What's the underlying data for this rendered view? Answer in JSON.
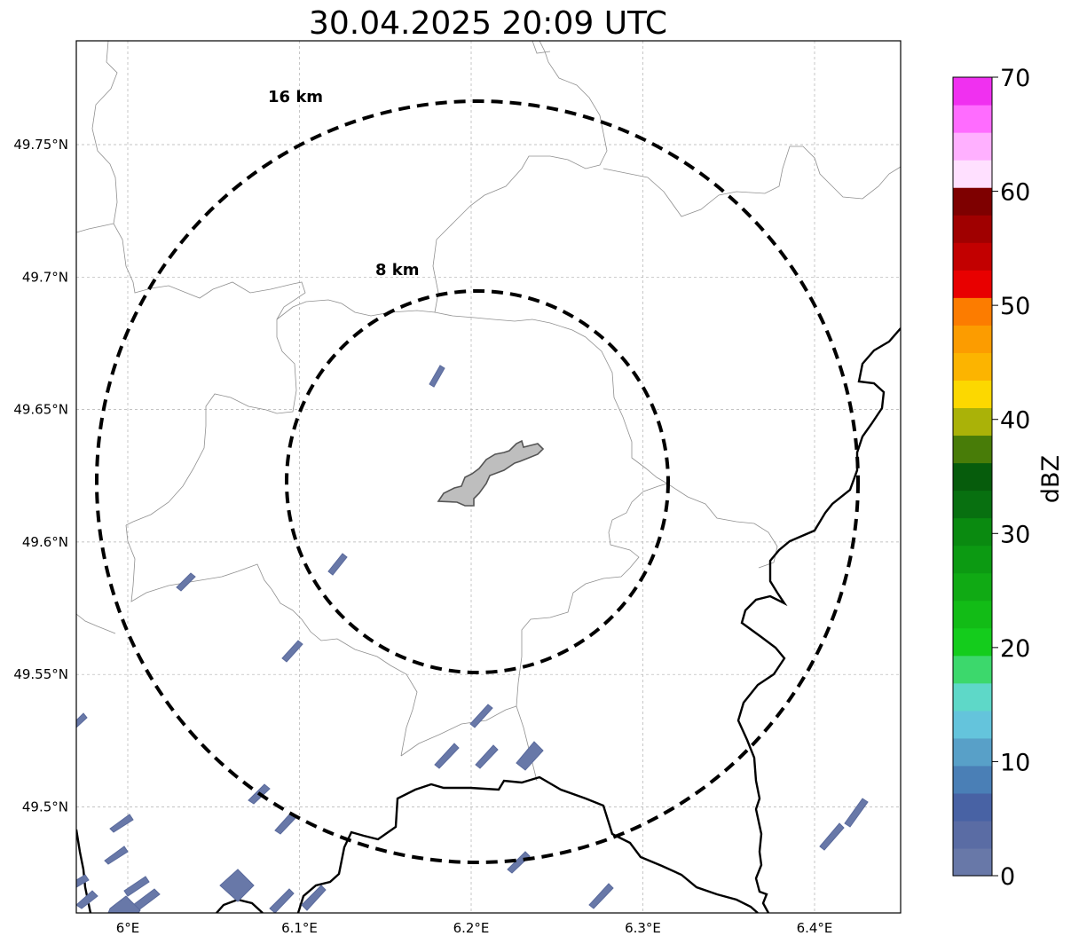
{
  "title": "30.04.2025 20:09 UTC",
  "map": {
    "lon_ticks": [
      {
        "value": 6.0,
        "label": "6°E"
      },
      {
        "value": 6.1,
        "label": "6.1°E"
      },
      {
        "value": 6.2,
        "label": "6.2°E"
      },
      {
        "value": 6.3,
        "label": "6.3°E"
      },
      {
        "value": 6.4,
        "label": "6.4°E"
      }
    ],
    "lat_ticks": [
      {
        "value": 49.75,
        "label": "49.75°N"
      },
      {
        "value": 49.7,
        "label": "49.7°N"
      },
      {
        "value": 49.65,
        "label": "49.65°N"
      },
      {
        "value": 49.6,
        "label": "49.6°N"
      },
      {
        "value": 49.55,
        "label": "49.55°N"
      },
      {
        "value": 49.5,
        "label": "49.5°N"
      }
    ],
    "range_rings": [
      {
        "label": "16 km",
        "radius_km": 16
      },
      {
        "label": "8 km",
        "radius_km": 8
      }
    ],
    "gridlines": true
  },
  "colorbar": {
    "label": "dBZ",
    "min": 0,
    "max": 70,
    "tick_labels": [
      "0",
      "10",
      "20",
      "30",
      "40",
      "50",
      "60",
      "70"
    ],
    "colors": [
      "#6878a8",
      "#5a6ca4",
      "#4862a4",
      "#4a7fb6",
      "#58a0c8",
      "#64c4dc",
      "#5ed8c8",
      "#3cd86c",
      "#14cc1c",
      "#12bc16",
      "#10aa14",
      "#0c9a12",
      "#0a8a10",
      "#087010",
      "#065c0c",
      "#487c08",
      "#aab208",
      "#fcd800",
      "#fcb400",
      "#fc9c00",
      "#fc7c00",
      "#e80000",
      "#c20000",
      "#a00000",
      "#7e0000",
      "#ffe0ff",
      "#ffb0ff",
      "#ff6cff",
      "#f030f0"
    ]
  }
}
